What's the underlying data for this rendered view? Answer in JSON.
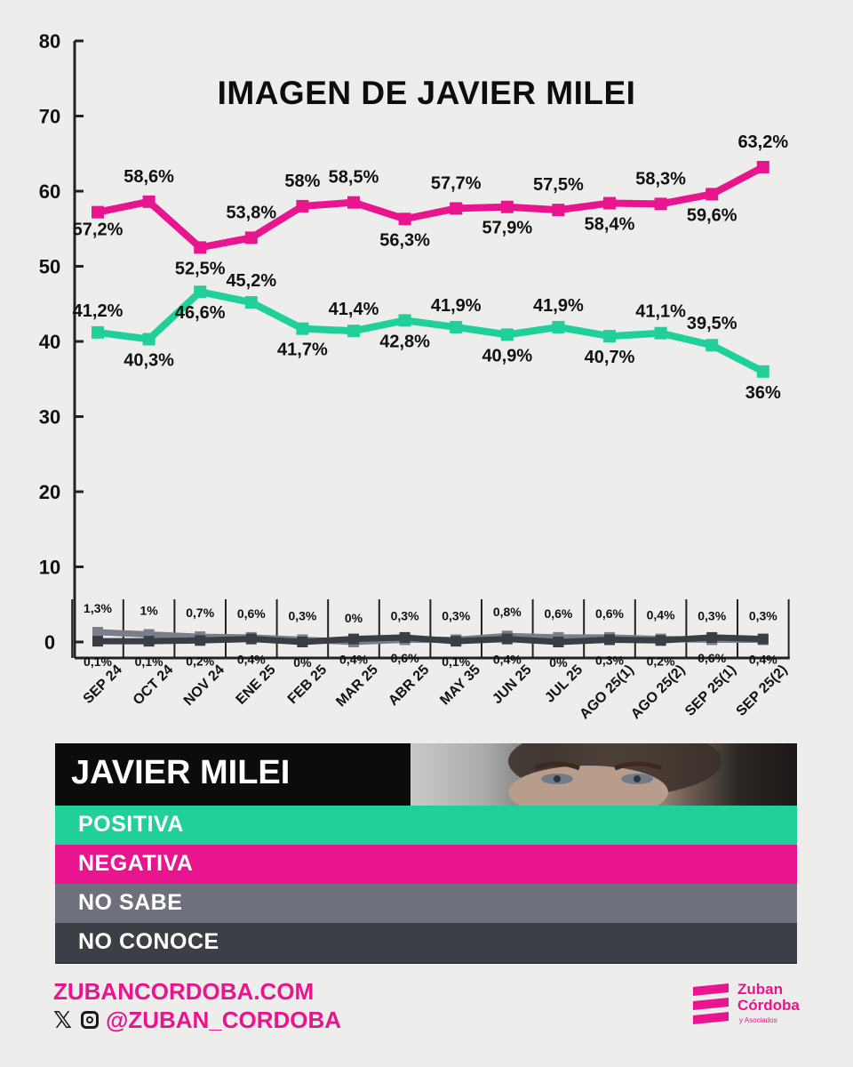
{
  "chart_data": {
    "type": "line",
    "title": "IMAGEN DE JAVIER MILEI",
    "categories": [
      "SEP 24",
      "OCT 24",
      "NOV 24",
      "ENE 25",
      "FEB 25",
      "MAR 25",
      "ABR 25",
      "MAY 35",
      "JUN 25",
      "JUL 25",
      "AGO 25(1)",
      "AGO 25(2)",
      "SEP 25(1)",
      "SEP 25(2)"
    ],
    "ylim": [
      0,
      80
    ],
    "yticks": [
      0,
      10,
      20,
      30,
      40,
      50,
      60,
      70,
      80
    ],
    "ytick_labels": [
      "0",
      "10",
      "20",
      "30",
      "40",
      "50",
      "60",
      "70",
      "80"
    ],
    "series": [
      {
        "name": "NEGATIVA",
        "color": "#e8158e",
        "values": [
          57.2,
          58.6,
          52.5,
          53.8,
          58,
          58.5,
          56.3,
          57.7,
          57.9,
          57.5,
          58.4,
          58.3,
          59.6,
          63.2
        ],
        "labels": [
          "57,2%",
          "58,6%",
          "52,5%",
          "53,8%",
          "58%",
          "58,5%",
          "56,3%",
          "57,7%",
          "57,9%",
          "57,5%",
          "58,4%",
          "58,3%",
          "59,6%",
          "63,2%"
        ]
      },
      {
        "name": "POSITIVA",
        "color": "#20cf9a",
        "values": [
          41.2,
          40.3,
          46.6,
          45.2,
          41.7,
          41.4,
          42.8,
          41.9,
          40.9,
          41.9,
          40.7,
          41.1,
          39.5,
          36
        ],
        "labels": [
          "41,2%",
          "40,3%",
          "46,6%",
          "45,2%",
          "41,7%",
          "41,4%",
          "42,8%",
          "41,9%",
          "40,9%",
          "41,9%",
          "40,7%",
          "41,1%",
          "39,5%",
          "36%"
        ]
      },
      {
        "name": "NO SABE",
        "color": "#7a7e8a",
        "values": [
          1.3,
          1,
          0.7,
          0.6,
          0.3,
          0,
          0.3,
          0.3,
          0.8,
          0.6,
          0.6,
          0.4,
          0.3,
          0.3
        ],
        "labels": [
          "1,3%",
          "1%",
          "0,7%",
          "0,6%",
          "0,3%",
          "0%",
          "0,3%",
          "0,3%",
          "0,8%",
          "0,6%",
          "0,6%",
          "0,4%",
          "0,3%",
          "0,3%"
        ]
      },
      {
        "name": "NO CONOCE",
        "color": "#3a3d44",
        "values": [
          0.1,
          0.1,
          0.2,
          0.4,
          0,
          0.4,
          0.6,
          0.1,
          0.4,
          0,
          0.3,
          0.2,
          0.6,
          0.4
        ],
        "labels": [
          "0,1%",
          "0,1%",
          "0,2%",
          "0,4%",
          "0%",
          "0,4%",
          "0,6%",
          "0,1%",
          "0,4%",
          "0%",
          "0,3%",
          "0,2%",
          "0,6%",
          "0,4%"
        ]
      }
    ]
  },
  "legend": {
    "name": "JAVIER MILEI",
    "items": [
      {
        "label": "POSITIVA",
        "color": "#20cf9a"
      },
      {
        "label": "NEGATIVA",
        "color": "#e8158e"
      },
      {
        "label": "NO SABE",
        "color": "#6e717c"
      },
      {
        "label": "NO CONOCE",
        "color": "#3c3f46"
      }
    ]
  },
  "footer": {
    "website": "ZUBANCORDOBA.COM",
    "handle": "@ZUBAN_CORDOBA",
    "x_icon": "x-icon",
    "instagram_icon": "instagram-icon"
  },
  "logo": {
    "line1": "Zuban",
    "line2": "Córdoba",
    "line3": "y Asociados"
  }
}
